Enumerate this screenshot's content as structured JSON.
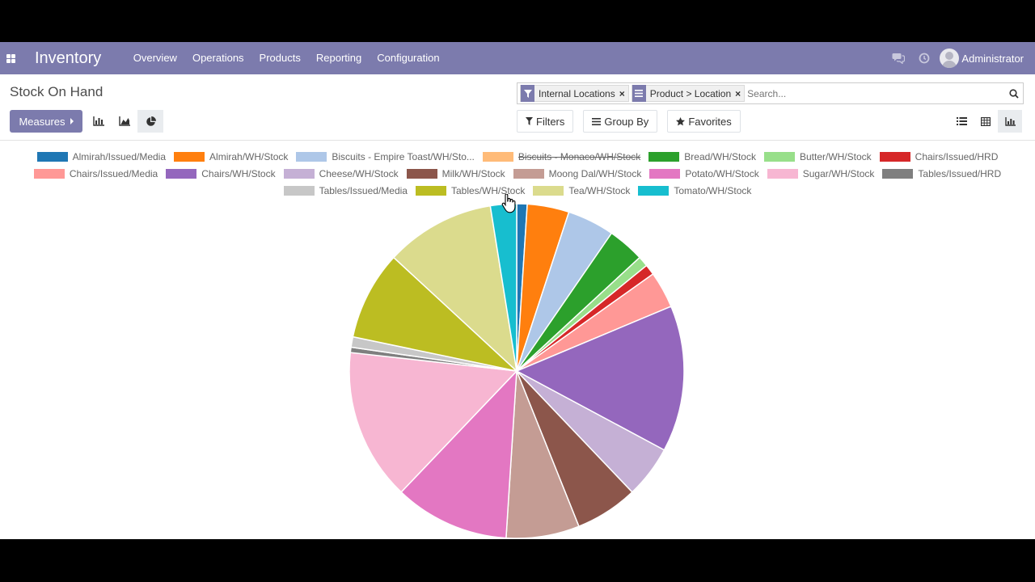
{
  "navbar": {
    "brand": "Inventory",
    "menu": [
      "Overview",
      "Operations",
      "Products",
      "Reporting",
      "Configuration"
    ],
    "user": "Administrator",
    "icons": [
      "apps-icon",
      "chat-icon",
      "clock-icon",
      "avatar"
    ]
  },
  "control_panel": {
    "title": "Stock On Hand",
    "measures_label": "Measures",
    "search": {
      "facets": [
        {
          "icon": "filter-icon",
          "label": "Internal Locations"
        },
        {
          "icon": "groupby-icon",
          "label": "Product > Location"
        }
      ],
      "placeholder": "Search..."
    },
    "filters_label": "Filters",
    "groupby_label": "Group By",
    "favorites_label": "Favorites",
    "chart_types": [
      "bar-chart-icon",
      "line-chart-icon",
      "pie-chart-icon"
    ],
    "active_chart_type": "pie",
    "views": [
      "list-view-icon",
      "pivot-view-icon",
      "graph-view-icon"
    ],
    "active_view": "graph"
  },
  "chart_data": {
    "type": "pie",
    "legend_position": "top",
    "series": [
      {
        "name": "Almirah/Issued/Media",
        "value": 1,
        "color": "#1f77b4"
      },
      {
        "name": "Almirah/WH/Stock",
        "value": 4,
        "color": "#ff7f0e"
      },
      {
        "name": "Biscuits - Empire Toast/WH/Sto...",
        "value": 4.5,
        "color": "#aec7e8"
      },
      {
        "name": "Biscuits - Monaco/WH/Stock",
        "value": 0,
        "color": "#ffbb78",
        "hidden": true
      },
      {
        "name": "Bread/WH/Stock",
        "value": 3.5,
        "color": "#2ca02c"
      },
      {
        "name": "Butter/WH/Stock",
        "value": 1,
        "color": "#98df8a"
      },
      {
        "name": "Chairs/Issued/HRD",
        "value": 1,
        "color": "#d62728"
      },
      {
        "name": "Chairs/Issued/Media",
        "value": 3.5,
        "color": "#ff9896"
      },
      {
        "name": "Chairs/WH/Stock",
        "value": 14,
        "color": "#9467bd"
      },
      {
        "name": "Cheese/WH/Stock",
        "value": 5,
        "color": "#c5b0d5"
      },
      {
        "name": "Milk/WH/Stock",
        "value": 6,
        "color": "#8c564b"
      },
      {
        "name": "Moong Dal/WH/Stock",
        "value": 7,
        "color": "#c49c94"
      },
      {
        "name": "Potato/WH/Stock",
        "value": 11,
        "color": "#e377c2"
      },
      {
        "name": "Sugar/WH/Stock",
        "value": 14.5,
        "color": "#f7b6d2"
      },
      {
        "name": "Tables/Issued/HRD",
        "value": 0.5,
        "color": "#7f7f7f"
      },
      {
        "name": "Tables/Issued/Media",
        "value": 1,
        "color": "#c7c7c7"
      },
      {
        "name": "Tables/WH/Stock",
        "value": 8.5,
        "color": "#bcbd22"
      },
      {
        "name": "Tea/WH/Stock",
        "value": 10.5,
        "color": "#dbdb8d"
      },
      {
        "name": "Tomato/WH/Stock",
        "value": 2.5,
        "color": "#17becf"
      }
    ]
  }
}
